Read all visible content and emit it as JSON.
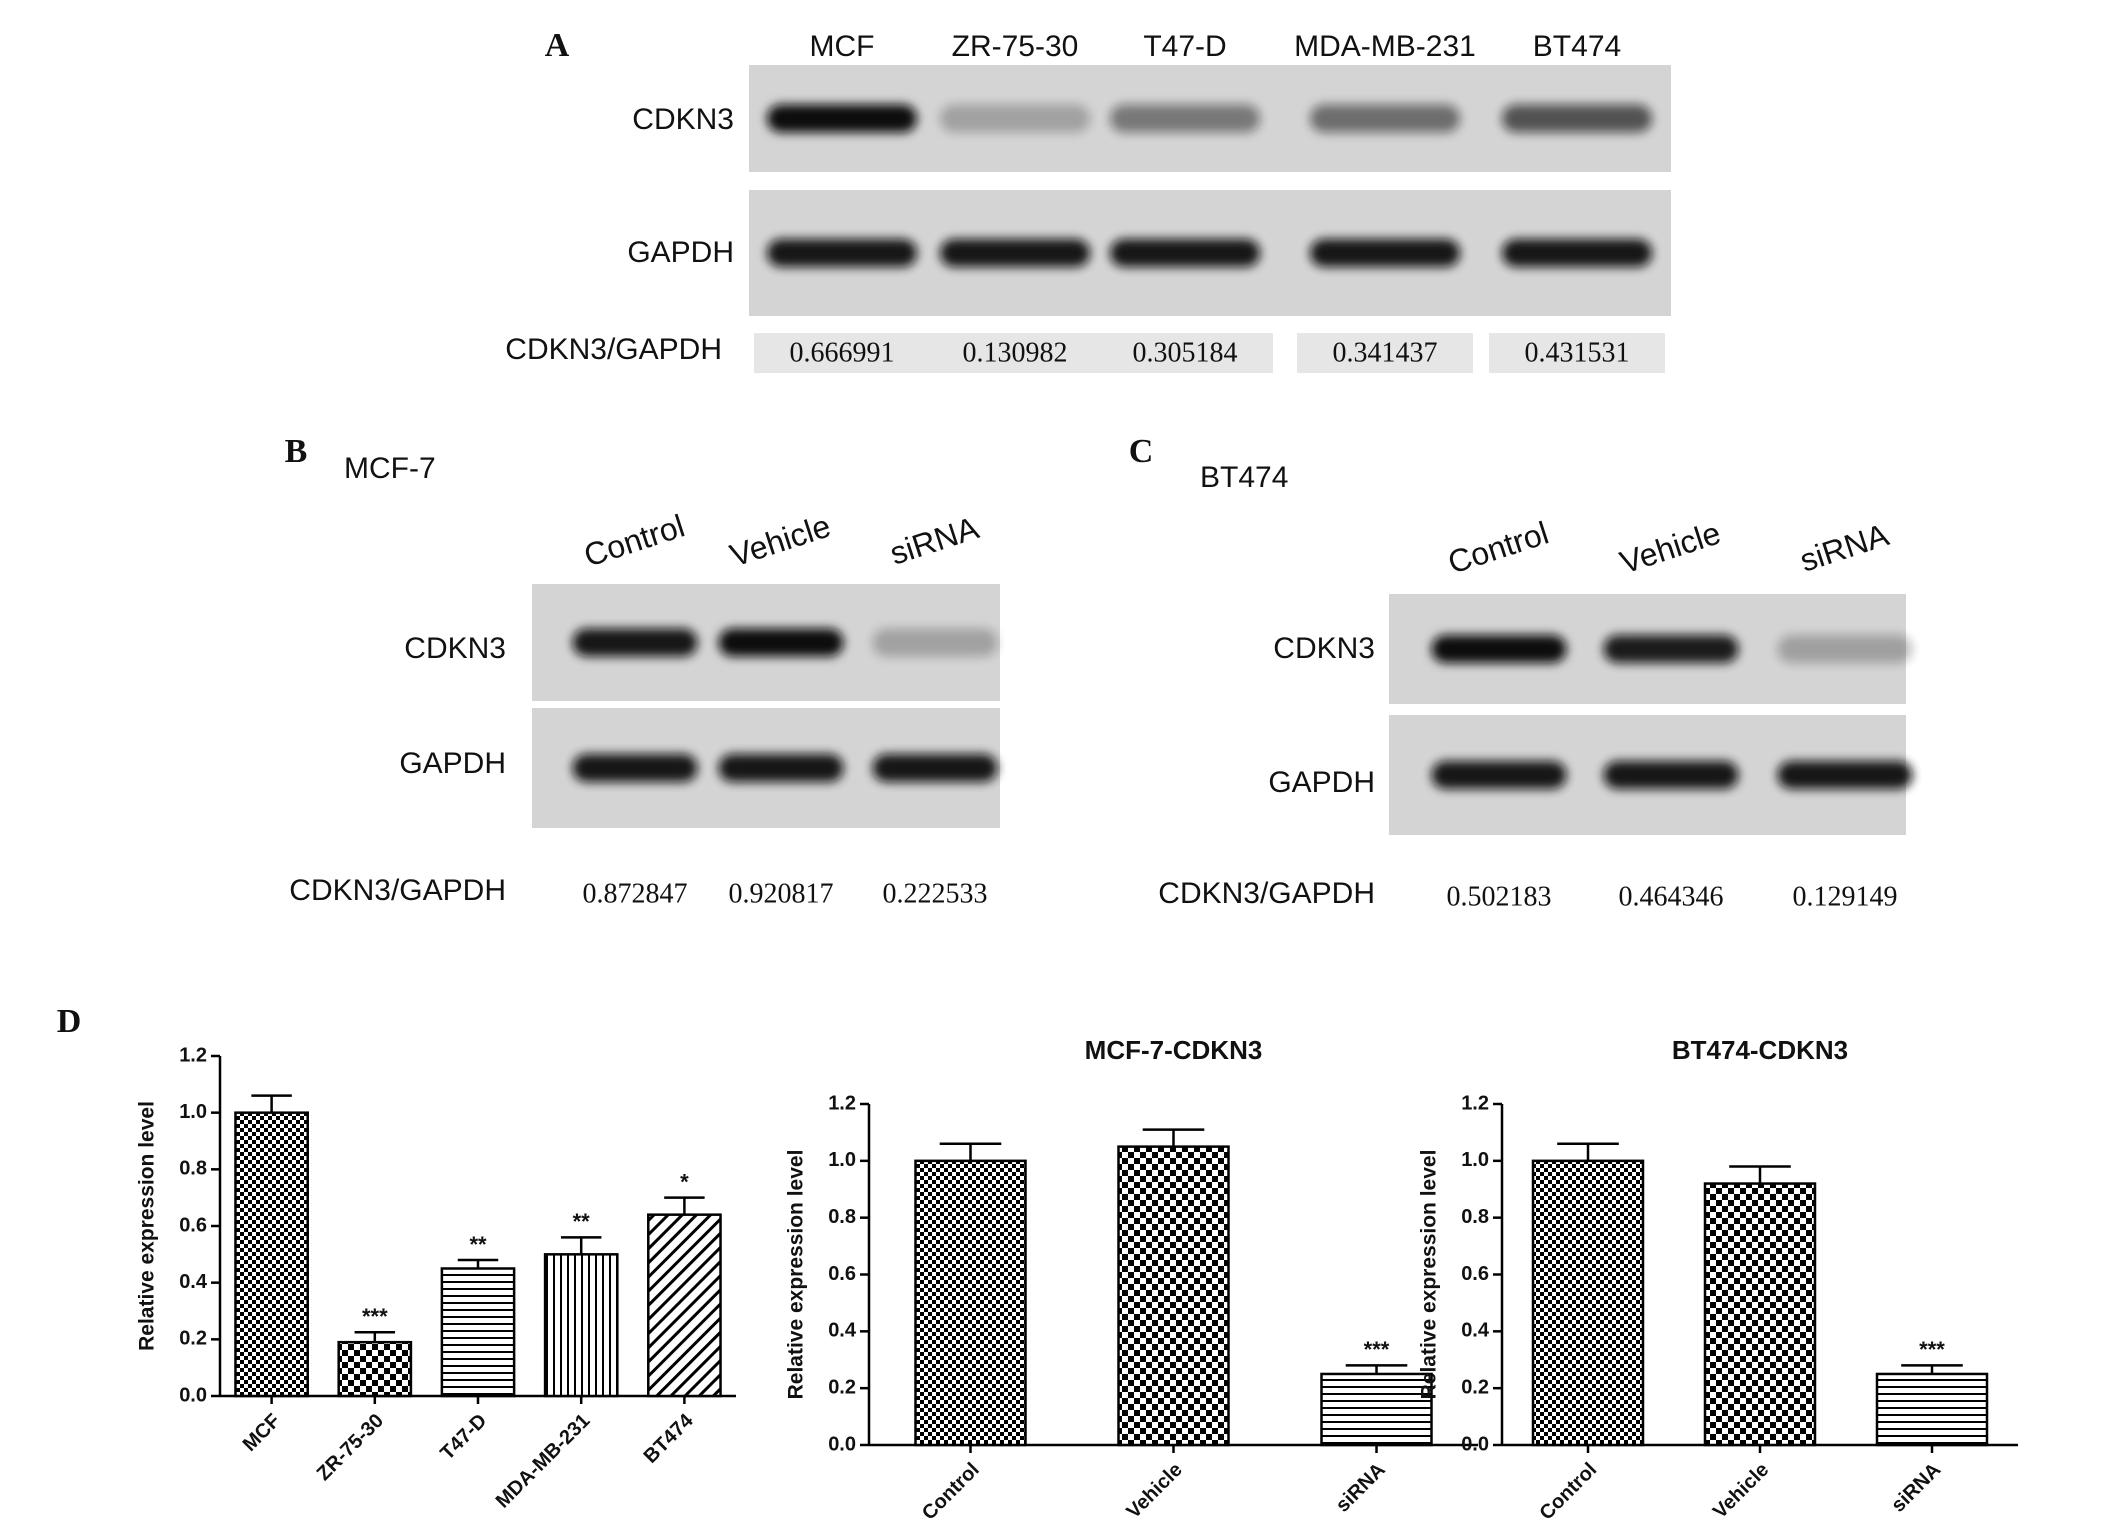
{
  "panel_a": {
    "letter": "A",
    "lanes": [
      "MCF",
      "ZR-75-30",
      "T47-D",
      "MDA-MB-231",
      "BT474"
    ],
    "rows": [
      "CDKN3",
      "GAPDH"
    ],
    "ratio_label": "CDKN3/GAPDH",
    "ratios": [
      0.666991,
      0.130982,
      0.305184,
      0.341437,
      0.431531
    ]
  },
  "panel_b": {
    "letter": "B",
    "cell_line": "MCF-7",
    "lanes": [
      "Control",
      "Vehicle",
      "siRNA"
    ],
    "rows": [
      "CDKN3",
      "GAPDH"
    ],
    "ratio_label": "CDKN3/GAPDH",
    "ratios": [
      0.872847,
      0.920817,
      0.222533
    ]
  },
  "panel_c": {
    "letter": "C",
    "cell_line": "BT474",
    "lanes": [
      "Control",
      "Vehicle",
      "siRNA"
    ],
    "rows": [
      "CDKN3",
      "GAPDH"
    ],
    "ratio_label": "CDKN3/GAPDH",
    "ratios": [
      0.502183,
      0.464346,
      0.129149
    ]
  },
  "panel_d_letter": "D",
  "chart_data": [
    {
      "type": "bar",
      "y_label": "Relative expression level",
      "categories": [
        "MCF",
        "ZR-75-30",
        "T47-D",
        "MDA-MB-231",
        "BT474"
      ],
      "values": [
        1.0,
        0.19,
        0.45,
        0.5,
        0.64
      ],
      "errors": [
        0.06,
        0.035,
        0.03,
        0.06,
        0.06
      ],
      "annotations": [
        null,
        "***",
        "**",
        "**",
        "*"
      ],
      "patterns": [
        "checker",
        "checker-large",
        "hlines",
        "vlines",
        "diagonal"
      ],
      "color": "#000000",
      "ylim": [
        0,
        1.2
      ],
      "yticks": [
        {
          "value": 0,
          "label": "0.0"
        },
        0.2,
        0.4,
        0.6,
        0.8,
        {
          "value": 1,
          "label": "1.0"
        },
        1.2
      ]
    },
    {
      "type": "bar",
      "title": "MCF-7-CDKN3",
      "y_label": "Relative expression level",
      "categories": [
        "Control",
        "Vehicle",
        "siRNA"
      ],
      "values": [
        1.0,
        1.05,
        0.25
      ],
      "errors": [
        0.06,
        0.06,
        0.03
      ],
      "annotations": [
        null,
        null,
        "***"
      ],
      "patterns": [
        "checker",
        "checker-large",
        "hlines"
      ],
      "color": "#000000",
      "ylim": [
        0,
        1.2
      ],
      "yticks": [
        {
          "value": 0,
          "label": "0.0"
        },
        0.2,
        0.4,
        0.6,
        0.8,
        {
          "value": 1,
          "label": "1.0"
        },
        1.2
      ]
    },
    {
      "type": "bar",
      "title": "BT474-CDKN3",
      "y_label": "Relative expression level",
      "categories": [
        "Control",
        "Vehicle",
        "siRNA"
      ],
      "values": [
        1.0,
        0.92,
        0.25
      ],
      "errors": [
        0.06,
        0.06,
        0.03
      ],
      "annotations": [
        null,
        null,
        "***"
      ],
      "patterns": [
        "checker",
        "checker-large",
        "hlines"
      ],
      "color": "#000000",
      "ylim": [
        0,
        1.2
      ],
      "yticks": [
        {
          "value": 0,
          "label": "0.0"
        },
        0.2,
        0.4,
        0.6,
        0.8,
        {
          "value": 1,
          "label": "1.0"
        },
        1.2
      ]
    }
  ]
}
